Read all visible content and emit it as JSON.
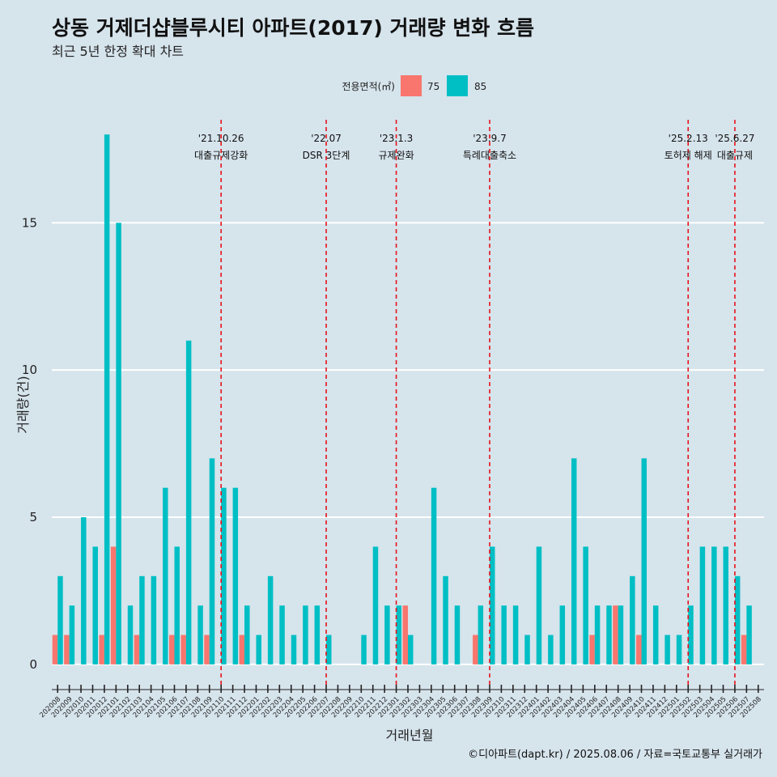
{
  "chart_data": {
    "type": "bar",
    "title": "상동 거제더샵블루시티 아파트(2017) 거래량 변화 흐름",
    "subtitle": "최근 5년 한정 확대 차트",
    "xlabel": "거래년월",
    "ylabel": "거래량(건)",
    "ylim": [
      -0.8,
      18.5
    ],
    "yticks": [
      0,
      5,
      10,
      15
    ],
    "grid": true,
    "legend": {
      "title": "전용면적(㎡)",
      "placement": "top-center"
    },
    "colors": {
      "75": "#f8766d",
      "85": "#00bfc4"
    },
    "categories": [
      "202008",
      "202009",
      "202010",
      "202011",
      "202012",
      "202101",
      "202102",
      "202103",
      "202104",
      "202105",
      "202106",
      "202107",
      "202108",
      "202109",
      "202110",
      "202111",
      "202112",
      "202201",
      "202202",
      "202203",
      "202204",
      "202205",
      "202206",
      "202207",
      "202208",
      "202209",
      "202210",
      "202211",
      "202212",
      "202301",
      "202302",
      "202303",
      "202304",
      "202305",
      "202306",
      "202307",
      "202308",
      "202309",
      "202310",
      "202311",
      "202312",
      "202401",
      "202402",
      "202403",
      "202404",
      "202405",
      "202406",
      "202407",
      "202408",
      "202409",
      "202410",
      "202411",
      "202412",
      "202501",
      "202502",
      "202503",
      "202504",
      "202505",
      "202506",
      "202507",
      "202508"
    ],
    "series": [
      {
        "name": "75",
        "values": [
          1,
          1,
          0,
          0,
          1,
          4,
          0,
          1,
          0,
          0,
          1,
          1,
          0,
          1,
          0,
          0,
          1,
          0,
          0,
          0,
          0,
          0,
          0,
          0,
          0,
          0,
          0,
          0,
          0,
          0,
          2,
          0,
          0,
          0,
          0,
          0,
          1,
          0,
          0,
          0,
          0,
          0,
          0,
          0,
          0,
          0,
          1,
          0,
          2,
          0,
          1,
          0,
          0,
          0,
          0,
          0,
          0,
          0,
          0,
          1,
          0
        ]
      },
      {
        "name": "85",
        "values": [
          3,
          2,
          5,
          4,
          18,
          15,
          2,
          3,
          3,
          6,
          4,
          11,
          2,
          7,
          6,
          6,
          2,
          1,
          3,
          2,
          1,
          2,
          2,
          1,
          0,
          0,
          1,
          4,
          2,
          2,
          1,
          0,
          6,
          3,
          2,
          0,
          2,
          4,
          2,
          2,
          1,
          4,
          1,
          2,
          7,
          4,
          2,
          2,
          2,
          3,
          7,
          2,
          1,
          1,
          2,
          4,
          4,
          4,
          3,
          2,
          0
        ]
      }
    ],
    "events": [
      {
        "date": "'21.10.26",
        "label": "대출규제강화",
        "x": "202110"
      },
      {
        "date": "'22.07",
        "label": "DSR 3단계",
        "x": "202207"
      },
      {
        "date": "'23.1.3",
        "label": "규제완화",
        "x": "202301"
      },
      {
        "date": "'23.9.7",
        "label": "특례대출축소",
        "x": "202309"
      },
      {
        "date": "'25.2.13",
        "label": "토허제 해제",
        "x": "202502"
      },
      {
        "date": "'25.6.27",
        "label": "대출규제",
        "x": "202506"
      }
    ],
    "caption": "©디아파트(dapt.kr) / 2025.08.06 / 자료=국토교통부 실거래가"
  }
}
